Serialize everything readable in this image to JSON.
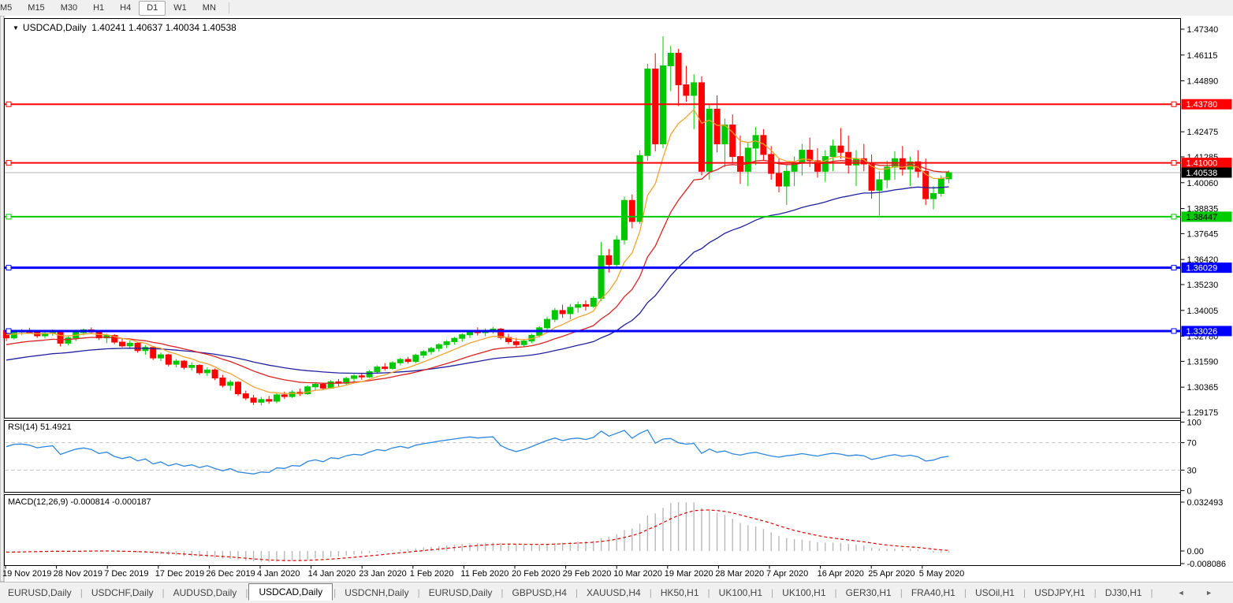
{
  "toolbar": {
    "timeframes": [
      "M5",
      "M15",
      "M30",
      "H1",
      "H4",
      "D1",
      "W1",
      "MN"
    ],
    "active": "D1"
  },
  "window": {
    "symbol_period": "USDCAD,Daily",
    "ohlc_text": "1.40241 1.40637 1.40034 1.40538"
  },
  "indicators": {
    "rsi": {
      "label": "RSI(14) 51.4921",
      "period": 14,
      "axis_labels": [
        "100",
        "70",
        "30",
        "0"
      ],
      "level_values": [
        100,
        70,
        30,
        0
      ],
      "color": "#2E86E0"
    },
    "macd": {
      "label": "MACD(12,26,9) -0.000814 -0.000187",
      "fast": 12,
      "slow": 26,
      "signal": 9,
      "axis_labels": [
        "0.032493",
        "0.00",
        "-0.008086"
      ],
      "hist_color": "#B8B8B8",
      "signal_color": "#E00000"
    }
  },
  "price_axis_ticks": [
    "1.47340",
    "1.46115",
    "1.44890",
    "1.42475",
    "1.41285",
    "1.40060",
    "1.38835",
    "1.37645",
    "1.36420",
    "1.35230",
    "1.34005",
    "1.32780",
    "1.31590",
    "1.30365",
    "1.29175"
  ],
  "hlines": [
    {
      "label": "1.43780",
      "price": 1.4378,
      "color": "#FF0000",
      "text_color": "#FFFFFF",
      "width": 2
    },
    {
      "label": "1.41000",
      "price": 1.41,
      "color": "#FF0000",
      "text_color": "#FFFFFF",
      "width": 2
    },
    {
      "label": "1.38447",
      "price": 1.38447,
      "color": "#00CC00",
      "text_color": "#000000",
      "width": 2
    },
    {
      "label": "1.36029",
      "price": 1.36029,
      "color": "#0000FF",
      "text_color": "#FFFFFF",
      "width": 3
    },
    {
      "label": "1.33026",
      "price": 1.33026,
      "color": "#0000FF",
      "text_color": "#FFFFFF",
      "width": 3
    }
  ],
  "current_price": {
    "label": "1.40538",
    "price": 1.40538,
    "line_color": "#B4B4B4",
    "box_color": "#000000"
  },
  "date_labels": [
    "19 Nov 2019",
    "28 Nov 2019",
    "7 Dec 2019",
    "17 Dec 2019",
    "26 Dec 2019",
    "4 Jan 2020",
    "14 Jan 2020",
    "23 Jan 2020",
    "1 Feb 2020",
    "11 Feb 2020",
    "20 Feb 2020",
    "29 Feb 2020",
    "10 Mar 2020",
    "19 Mar 2020",
    "28 Mar 2020",
    "7 Apr 2020",
    "16 Apr 2020",
    "25 Apr 2020",
    "5 May 2020"
  ],
  "chart_data": {
    "type": "candlestick",
    "symbol": "USDCAD",
    "period": "Daily",
    "title": "USDCAD,Daily",
    "ohlc_display": {
      "open": "1.40241",
      "high": "1.40637",
      "low": "1.40034",
      "close": "1.40538"
    },
    "y_range": [
      1.28988,
      1.47602
    ],
    "up_color": "#00C800",
    "down_color": "#FF0000",
    "moving_averages": [
      {
        "name": "fast",
        "color": "#EFA32F",
        "period": 8
      },
      {
        "name": "medium",
        "color": "#DD2222",
        "period": 20
      },
      {
        "name": "slow",
        "color": "#2020A0",
        "period": 45
      }
    ],
    "candles": [
      [
        1.3305,
        1.331,
        1.3255,
        1.327
      ],
      [
        1.327,
        1.3305,
        1.3262,
        1.3298
      ],
      [
        1.3298,
        1.3312,
        1.3285,
        1.3302
      ],
      [
        1.3302,
        1.3318,
        1.329,
        1.3295
      ],
      [
        1.3295,
        1.3305,
        1.327,
        1.328
      ],
      [
        1.328,
        1.3298,
        1.3268,
        1.3292
      ],
      [
        1.3292,
        1.331,
        1.328,
        1.33
      ],
      [
        1.33,
        1.3305,
        1.323,
        1.3245
      ],
      [
        1.3245,
        1.328,
        1.3235,
        1.327
      ],
      [
        1.327,
        1.3302,
        1.3255,
        1.3295
      ],
      [
        1.3295,
        1.3315,
        1.3282,
        1.3308
      ],
      [
        1.3308,
        1.332,
        1.329,
        1.3298
      ],
      [
        1.3298,
        1.3305,
        1.326,
        1.327
      ],
      [
        1.327,
        1.329,
        1.3245,
        1.3282
      ],
      [
        1.3282,
        1.3288,
        1.324,
        1.325
      ],
      [
        1.325,
        1.3265,
        1.3225,
        1.3232
      ],
      [
        1.3232,
        1.3258,
        1.322,
        1.3245
      ],
      [
        1.3245,
        1.325,
        1.32,
        1.321
      ],
      [
        1.321,
        1.3235,
        1.319,
        1.3225
      ],
      [
        1.3225,
        1.323,
        1.3165,
        1.3175
      ],
      [
        1.3175,
        1.32,
        1.316,
        1.319
      ],
      [
        1.319,
        1.3195,
        1.3135,
        1.3145
      ],
      [
        1.3145,
        1.317,
        1.313,
        1.316
      ],
      [
        1.316,
        1.3165,
        1.312,
        1.313
      ],
      [
        1.313,
        1.3155,
        1.3115,
        1.314
      ],
      [
        1.314,
        1.3145,
        1.3095,
        1.3105
      ],
      [
        1.3105,
        1.313,
        1.309,
        1.3118
      ],
      [
        1.3118,
        1.3125,
        1.307,
        1.308
      ],
      [
        1.308,
        1.3095,
        1.3035,
        1.3045
      ],
      [
        1.3045,
        1.307,
        1.302,
        1.306
      ],
      [
        1.306,
        1.3065,
        1.2995,
        1.3005
      ],
      [
        1.3005,
        1.302,
        1.2975,
        1.2985
      ],
      [
        1.2985,
        1.3,
        1.2952,
        1.2965
      ],
      [
        1.2965,
        1.299,
        1.295,
        1.2978
      ],
      [
        1.2978,
        1.2995,
        1.2958,
        1.297
      ],
      [
        1.297,
        1.301,
        1.296,
        1.3
      ],
      [
        1.3,
        1.3015,
        1.298,
        1.2992
      ],
      [
        1.2992,
        1.3022,
        1.2985,
        1.3012
      ],
      [
        1.3012,
        1.303,
        1.2995,
        1.3005
      ],
      [
        1.3005,
        1.3045,
        1.3,
        1.3038
      ],
      [
        1.3038,
        1.306,
        1.302,
        1.305
      ],
      [
        1.305,
        1.3058,
        1.3022,
        1.3032
      ],
      [
        1.3032,
        1.307,
        1.3028,
        1.3062
      ],
      [
        1.3062,
        1.3075,
        1.304,
        1.3055
      ],
      [
        1.3055,
        1.3085,
        1.3048,
        1.3078
      ],
      [
        1.3078,
        1.3098,
        1.306,
        1.309
      ],
      [
        1.309,
        1.3105,
        1.3072,
        1.3085
      ],
      [
        1.3085,
        1.3118,
        1.308,
        1.311
      ],
      [
        1.311,
        1.314,
        1.31,
        1.3132
      ],
      [
        1.3132,
        1.315,
        1.3115,
        1.3125
      ],
      [
        1.3125,
        1.316,
        1.312,
        1.3152
      ],
      [
        1.3152,
        1.3175,
        1.314,
        1.3168
      ],
      [
        1.3168,
        1.318,
        1.3148,
        1.3158
      ],
      [
        1.3158,
        1.3195,
        1.315,
        1.3188
      ],
      [
        1.3188,
        1.3212,
        1.3175,
        1.3205
      ],
      [
        1.3205,
        1.3228,
        1.319,
        1.322
      ],
      [
        1.322,
        1.3245,
        1.3205,
        1.3238
      ],
      [
        1.3238,
        1.326,
        1.3222,
        1.3252
      ],
      [
        1.3252,
        1.3275,
        1.3238,
        1.3268
      ],
      [
        1.3268,
        1.3292,
        1.3252,
        1.3285
      ],
      [
        1.3285,
        1.3308,
        1.327,
        1.33
      ],
      [
        1.33,
        1.332,
        1.3282,
        1.3295
      ],
      [
        1.3295,
        1.3315,
        1.3278,
        1.3305
      ],
      [
        1.3305,
        1.3322,
        1.329,
        1.3312
      ],
      [
        1.3312,
        1.3318,
        1.3262,
        1.3272
      ],
      [
        1.3272,
        1.329,
        1.324,
        1.3252
      ],
      [
        1.3252,
        1.327,
        1.3225,
        1.3238
      ],
      [
        1.3238,
        1.3262,
        1.3228,
        1.3255
      ],
      [
        1.3255,
        1.329,
        1.3245,
        1.3282
      ],
      [
        1.3282,
        1.3325,
        1.3272,
        1.3318
      ],
      [
        1.3318,
        1.337,
        1.3305,
        1.3358
      ],
      [
        1.3358,
        1.3412,
        1.3345,
        1.34
      ],
      [
        1.34,
        1.3428,
        1.3365,
        1.3385
      ],
      [
        1.3385,
        1.343,
        1.3358,
        1.3415
      ],
      [
        1.3415,
        1.3442,
        1.339,
        1.3428
      ],
      [
        1.3428,
        1.3448,
        1.34,
        1.342
      ],
      [
        1.342,
        1.3468,
        1.3412,
        1.3458
      ],
      [
        1.3458,
        1.3725,
        1.3445,
        1.366
      ],
      [
        1.366,
        1.3692,
        1.358,
        1.3618
      ],
      [
        1.3618,
        1.3755,
        1.36,
        1.3735
      ],
      [
        1.3735,
        1.394,
        1.3712,
        1.3922
      ],
      [
        1.3922,
        1.395,
        1.379,
        1.3822
      ],
      [
        1.3822,
        1.416,
        1.381,
        1.4135
      ],
      [
        1.4135,
        1.457,
        1.411,
        1.4545
      ],
      [
        1.4545,
        1.462,
        1.4155,
        1.419
      ],
      [
        1.419,
        1.47,
        1.417,
        1.456
      ],
      [
        1.456,
        1.4655,
        1.444,
        1.462
      ],
      [
        1.462,
        1.464,
        1.437,
        1.447
      ],
      [
        1.447,
        1.456,
        1.439,
        1.442
      ],
      [
        1.442,
        1.452,
        1.426,
        1.448
      ],
      [
        1.448,
        1.451,
        1.404,
        1.406
      ],
      [
        1.406,
        1.438,
        1.402,
        1.4355
      ],
      [
        1.4355,
        1.442,
        1.415,
        1.419
      ],
      [
        1.419,
        1.431,
        1.408,
        1.428
      ],
      [
        1.428,
        1.433,
        1.41,
        1.413
      ],
      [
        1.413,
        1.423,
        1.4,
        1.406
      ],
      [
        1.406,
        1.42,
        1.399,
        1.417
      ],
      [
        1.417,
        1.427,
        1.409,
        1.423
      ],
      [
        1.423,
        1.426,
        1.411,
        1.414
      ],
      [
        1.414,
        1.418,
        1.402,
        1.405
      ],
      [
        1.405,
        1.412,
        1.396,
        1.399
      ],
      [
        1.399,
        1.409,
        1.39,
        1.406
      ],
      [
        1.406,
        1.413,
        1.399,
        1.41
      ],
      [
        1.41,
        1.419,
        1.404,
        1.416
      ],
      [
        1.416,
        1.422,
        1.408,
        1.411
      ],
      [
        1.411,
        1.417,
        1.403,
        1.406
      ],
      [
        1.406,
        1.416,
        1.401,
        1.413
      ],
      [
        1.413,
        1.421,
        1.406,
        1.418
      ],
      [
        1.418,
        1.4265,
        1.412,
        1.415
      ],
      [
        1.415,
        1.423,
        1.405,
        1.409
      ],
      [
        1.409,
        1.416,
        1.399,
        1.412
      ],
      [
        1.412,
        1.419,
        1.406,
        1.4095
      ],
      [
        1.4095,
        1.414,
        1.393,
        1.397
      ],
      [
        1.397,
        1.406,
        1.385,
        1.402
      ],
      [
        1.402,
        1.411,
        1.398,
        1.408
      ],
      [
        1.408,
        1.4155,
        1.402,
        1.412
      ],
      [
        1.412,
        1.418,
        1.404,
        1.407
      ],
      [
        1.407,
        1.413,
        1.399,
        1.4105
      ],
      [
        1.4105,
        1.416,
        1.403,
        1.406
      ],
      [
        1.406,
        1.412,
        1.39,
        1.393
      ],
      [
        1.393,
        1.399,
        1.388,
        1.3955
      ],
      [
        1.3955,
        1.404,
        1.394,
        1.4024
      ],
      [
        1.40241,
        1.40637,
        1.40034,
        1.40538
      ]
    ]
  },
  "tabs": {
    "items": [
      "EURUSD,Daily",
      "USDCHF,Daily",
      "AUDUSD,Daily",
      "USDCAD,Daily",
      "USDCNH,Daily",
      "EURUSD,Daily",
      "GBPUSD,H4",
      "XAUUSD,H4",
      "HK50,H1",
      "UK100,H1",
      "UK100,H1",
      "GER30,H1",
      "FRA40,H1",
      "USOil,H1",
      "USDJPY,H1",
      "DJ30,H1"
    ],
    "active_index": 3,
    "scroll_arrows": [
      "◄",
      "►"
    ]
  }
}
